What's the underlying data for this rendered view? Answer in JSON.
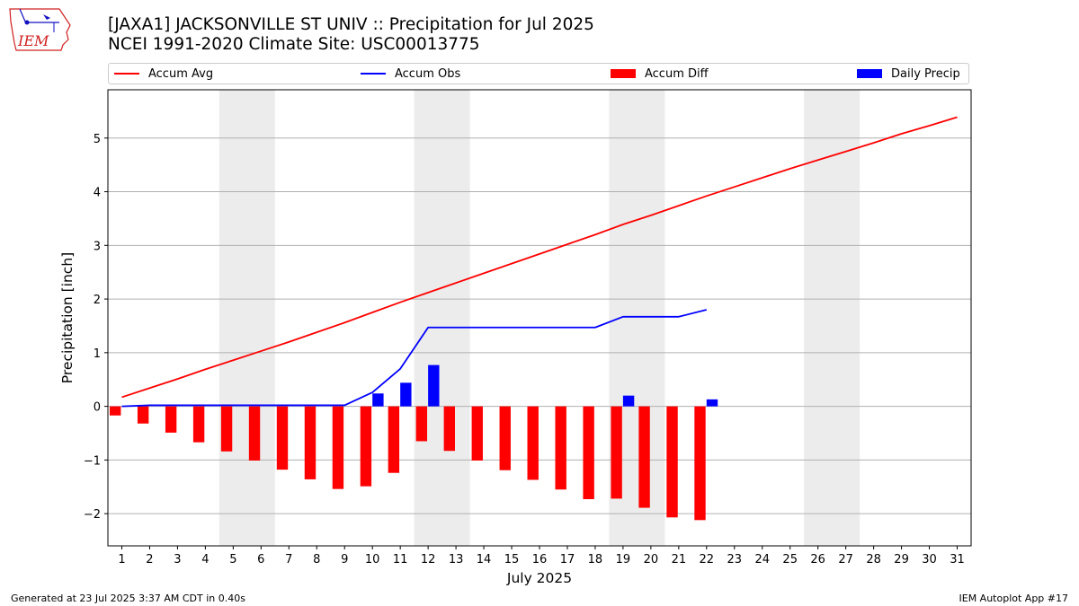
{
  "header": {
    "title_line1": "[JAXA1] JACKSONVILLE ST UNIV :: Precipitation for Jul 2025",
    "title_line2": "NCEI 1991-2020 Climate Site: USC00013775",
    "logo_text": "IEM"
  },
  "legend": {
    "accum_avg": "Accum Avg",
    "accum_obs": "Accum Obs",
    "accum_diff": "Accum Diff",
    "daily_precip": "Daily Precip"
  },
  "footer": {
    "generated": "Generated at 23 Jul 2025 3:37 AM CDT in 0.40s",
    "app": "IEM Autoplot App #17"
  },
  "colors": {
    "avg": "#ff0000",
    "obs": "#0000ff",
    "diff": "#ff0000",
    "daily": "#0000ff",
    "weekend_shade": "#ececec",
    "grid": "#b0b0b0"
  },
  "chart_data": {
    "type": "bar",
    "title": "[JAXA1] JACKSONVILLE ST UNIV :: Precipitation for Jul 2025",
    "xlabel": "July 2025",
    "ylabel": "Precipitation [inch]",
    "xlim": [
      0.5,
      31.5
    ],
    "ylim": [
      -2.6,
      5.9
    ],
    "yticks": [
      -2,
      -1,
      0,
      1,
      2,
      3,
      4,
      5
    ],
    "ytick_labels": [
      "−2",
      "−1",
      "0",
      "1",
      "2",
      "3",
      "4",
      "5"
    ],
    "x_days": [
      1,
      2,
      3,
      4,
      5,
      6,
      7,
      8,
      9,
      10,
      11,
      12,
      13,
      14,
      15,
      16,
      17,
      18,
      19,
      20,
      21,
      22,
      23,
      24,
      25,
      26,
      27,
      28,
      29,
      30,
      31
    ],
    "grid": "horizontal",
    "legend_position": "top",
    "shaded_weekends": [
      [
        5,
        6
      ],
      [
        12,
        13
      ],
      [
        19,
        20
      ],
      [
        26,
        27
      ]
    ],
    "series": [
      {
        "name": "Accum Avg",
        "type": "line",
        "x": [
          1,
          2,
          3,
          4,
          5,
          6,
          7,
          8,
          9,
          10,
          11,
          12,
          13,
          14,
          15,
          16,
          17,
          18,
          19,
          20,
          21,
          22,
          23,
          24,
          25,
          26,
          27,
          28,
          29,
          30,
          31
        ],
        "values": [
          0.17,
          0.34,
          0.51,
          0.69,
          0.86,
          1.03,
          1.2,
          1.38,
          1.56,
          1.75,
          1.94,
          2.12,
          2.3,
          2.48,
          2.66,
          2.84,
          3.02,
          3.2,
          3.39,
          3.56,
          3.74,
          3.92,
          4.09,
          4.26,
          4.43,
          4.59,
          4.75,
          4.91,
          5.08,
          5.23,
          5.39
        ]
      },
      {
        "name": "Accum Obs",
        "type": "line",
        "x": [
          1,
          2,
          3,
          4,
          5,
          6,
          7,
          8,
          9,
          10,
          11,
          12,
          13,
          14,
          15,
          16,
          17,
          18,
          19,
          20,
          21,
          22
        ],
        "values": [
          0.0,
          0.02,
          0.02,
          0.02,
          0.02,
          0.02,
          0.02,
          0.02,
          0.02,
          0.26,
          0.7,
          1.47,
          1.47,
          1.47,
          1.47,
          1.47,
          1.47,
          1.47,
          1.67,
          1.67,
          1.67,
          1.8
        ]
      },
      {
        "name": "Accum Diff",
        "type": "bar",
        "x": [
          1,
          2,
          3,
          4,
          5,
          6,
          7,
          8,
          9,
          10,
          11,
          12,
          13,
          14,
          15,
          16,
          17,
          18,
          19,
          20,
          21,
          22
        ],
        "values": [
          -0.17,
          -0.32,
          -0.49,
          -0.67,
          -0.84,
          -1.01,
          -1.18,
          -1.36,
          -1.54,
          -1.49,
          -1.24,
          -0.65,
          -0.83,
          -1.01,
          -1.19,
          -1.37,
          -1.55,
          -1.73,
          -1.72,
          -1.89,
          -2.07,
          -2.12
        ]
      },
      {
        "name": "Daily Precip",
        "type": "bar",
        "x": [
          10,
          11,
          12,
          19,
          22
        ],
        "values": [
          0.24,
          0.44,
          0.77,
          0.2,
          0.13
        ]
      }
    ]
  }
}
